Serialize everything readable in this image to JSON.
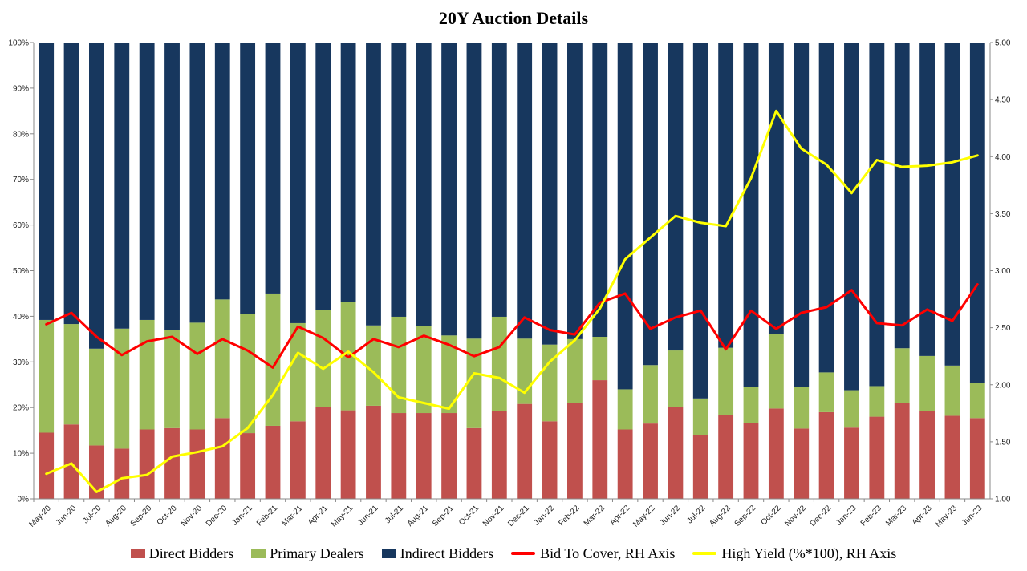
{
  "chart_data": {
    "type": "bar",
    "stacked": true,
    "title": "20Y Auction Details",
    "categories": [
      "May-20",
      "Jun-20",
      "Jul-20",
      "Aug-20",
      "Sep-20",
      "Oct-20",
      "Nov-20",
      "Dec-20",
      "Jan-21",
      "Feb-21",
      "Mar-21",
      "Apr-21",
      "May-21",
      "Jun-21",
      "Jul-21",
      "Aug-21",
      "Sep-21",
      "Oct-21",
      "Nov-21",
      "Dec-21",
      "Jan-22",
      "Feb-22",
      "Mar-22",
      "Apr-22",
      "May-22",
      "Jun-22",
      "Jul-22",
      "Aug-22",
      "Sep-22",
      "Oct-22",
      "Nov-22",
      "Dec-22",
      "Jan-23",
      "Feb-23",
      "Mar-23",
      "Apr-23",
      "May-23",
      "Jun-23"
    ],
    "y_left": {
      "ylim": [
        0,
        100
      ],
      "ticks": [
        "0%",
        "10%",
        "20%",
        "30%",
        "40%",
        "50%",
        "60%",
        "70%",
        "80%",
        "90%",
        "100%"
      ]
    },
    "y_right": {
      "ylim": [
        1.0,
        5.0
      ],
      "ticks": [
        "1.00",
        "1.50",
        "2.00",
        "2.50",
        "3.00",
        "3.50",
        "4.00",
        "4.50",
        "5.00"
      ]
    },
    "series": [
      {
        "name": "Direct Bidders",
        "kind": "bar",
        "axis": "left",
        "color": "#C0504D",
        "values": [
          14.5,
          16.3,
          11.7,
          11.0,
          15.2,
          15.5,
          15.2,
          17.7,
          14.4,
          16.0,
          17.0,
          20.1,
          19.4,
          20.4,
          18.8,
          18.8,
          18.8,
          15.5,
          19.3,
          20.8,
          17.0,
          21.0,
          26.0,
          15.2,
          16.5,
          20.2,
          14.0,
          18.3,
          16.6,
          19.8,
          15.4,
          19.0,
          15.6,
          18.0,
          21.0,
          19.2,
          18.2,
          17.7
        ]
      },
      {
        "name": "Primary Dealers",
        "kind": "bar",
        "axis": "left",
        "color": "#9BBB59",
        "values": [
          24.7,
          22.0,
          21.2,
          26.3,
          24.0,
          21.5,
          23.4,
          26.0,
          26.1,
          29.0,
          21.5,
          21.2,
          23.8,
          17.6,
          21.1,
          19.0,
          17.0,
          19.6,
          20.6,
          14.3,
          16.8,
          14.0,
          9.5,
          8.8,
          12.8,
          12.3,
          8.0,
          14.8,
          8.0,
          16.3,
          9.2,
          8.7,
          8.2,
          6.7,
          12.0,
          12.1,
          11.0,
          7.7
        ]
      },
      {
        "name": "Indirect Bidders",
        "kind": "bar",
        "axis": "left",
        "color": "#17375E",
        "values": [
          60.8,
          61.7,
          67.1,
          62.7,
          60.8,
          63.0,
          61.4,
          56.3,
          59.5,
          55.0,
          61.5,
          58.7,
          56.8,
          62.0,
          60.1,
          62.2,
          64.2,
          64.9,
          60.1,
          64.9,
          66.2,
          65.0,
          64.5,
          76.0,
          70.7,
          67.5,
          78.0,
          66.9,
          75.4,
          63.9,
          75.4,
          72.3,
          76.2,
          75.3,
          67.0,
          68.7,
          70.8,
          74.6
        ]
      },
      {
        "name": "Bid To Cover, RH Axis",
        "kind": "line",
        "axis": "right",
        "color": "#FF0000",
        "values": [
          2.53,
          2.63,
          2.42,
          2.26,
          2.38,
          2.42,
          2.27,
          2.4,
          2.3,
          2.15,
          2.51,
          2.41,
          2.24,
          2.4,
          2.33,
          2.43,
          2.35,
          2.25,
          2.33,
          2.59,
          2.48,
          2.44,
          2.72,
          2.8,
          2.49,
          2.59,
          2.65,
          2.31,
          2.65,
          2.49,
          2.63,
          2.68,
          2.83,
          2.54,
          2.52,
          2.66,
          2.56,
          2.88
        ]
      },
      {
        "name": "High Yield (%*100), RH Axis",
        "kind": "line",
        "axis": "right",
        "color": "#FFFF00",
        "values": [
          1.22,
          1.31,
          1.06,
          1.18,
          1.21,
          1.37,
          1.41,
          1.46,
          1.62,
          1.91,
          2.28,
          2.14,
          2.29,
          2.11,
          1.89,
          1.84,
          1.79,
          2.1,
          2.06,
          1.93,
          2.2,
          2.39,
          2.67,
          3.1,
          3.29,
          3.48,
          3.42,
          3.39,
          3.81,
          4.4,
          4.07,
          3.93,
          3.68,
          3.97,
          3.91,
          3.92,
          3.95,
          4.01
        ]
      }
    ],
    "legend": {
      "position": "bottom"
    },
    "grid": false
  }
}
